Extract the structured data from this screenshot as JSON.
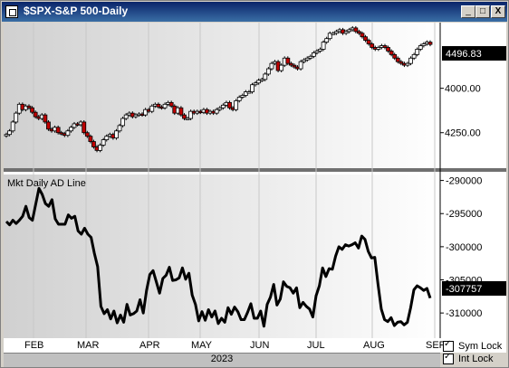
{
  "window": {
    "title": "$SPX-S&P 500-Daily",
    "buttons": {
      "minimize": "_",
      "maximize": "□",
      "close": "X"
    }
  },
  "price_panel": {
    "current_value": "4496.83",
    "y_ticks": [
      "4250.00",
      "4000.00"
    ]
  },
  "breadth_panel": {
    "label": "Mkt Daily AD Line",
    "current_value": "-307757",
    "y_ticks": [
      "-290000",
      "-295000",
      "-300000",
      "-305000",
      "-310000"
    ]
  },
  "x_axis": {
    "months": [
      "FEB",
      "MAR",
      "APR",
      "MAY",
      "JUN",
      "JUL",
      "AUG",
      "SEP"
    ],
    "year": "2023"
  },
  "locks": [
    {
      "label": "Sym Lock",
      "checked": true
    },
    {
      "label": "Int Lock",
      "checked": true
    }
  ],
  "chart_data": [
    {
      "type": "candlestick",
      "title": "$SPX-S&P 500-Daily",
      "ylim": [
        3800,
        4620
      ],
      "y_ticks": [
        4000,
        4250
      ],
      "last_value": 4496.83,
      "close_series": [
        3990,
        4010,
        4060,
        4110,
        4160,
        4130,
        4150,
        4140,
        4115,
        4090,
        4080,
        4100,
        4060,
        4020,
        4010,
        4030,
        4000,
        3995,
        3985,
        4010,
        4030,
        4050,
        4045,
        4060,
        4000,
        3980,
        3950,
        3920,
        3900,
        3930,
        3960,
        3980,
        3990,
        3970,
        4010,
        4040,
        4080,
        4100,
        4110,
        4090,
        4100,
        4105,
        4100,
        4130,
        4120,
        4150,
        4160,
        4145,
        4140,
        4160,
        4170,
        4150,
        4110,
        4140,
        4100,
        4080,
        4080,
        4120,
        4110,
        4120,
        4115,
        4130,
        4110,
        4120,
        4110,
        4130,
        4140,
        4155,
        4170,
        4140,
        4130,
        4180,
        4200,
        4210,
        4230,
        4230,
        4270,
        4280,
        4295,
        4300,
        4330,
        4360,
        4390,
        4400,
        4350,
        4380,
        4420,
        4390,
        4380,
        4370,
        4360,
        4400,
        4410,
        4420,
        4430,
        4450,
        4460,
        4470,
        4510,
        4530,
        4560,
        4560,
        4570,
        4580,
        4560,
        4570,
        4580,
        4590,
        4570,
        4560,
        4540,
        4520,
        4500,
        4480,
        4470,
        4480,
        4490,
        4480,
        4460,
        4440,
        4420,
        4400,
        4390,
        4380,
        4390,
        4420,
        4440,
        4470,
        4490,
        4500,
        4510,
        4497
      ]
    },
    {
      "type": "line",
      "title": "Mkt Daily AD Line",
      "ylim": [
        -313800,
        -289100
      ],
      "y_ticks": [
        -290000,
        -295000,
        -300000,
        -305000,
        -310000
      ],
      "last_value": -307757,
      "series": [
        {
          "values": [
            -296200,
            -296700,
            -296000,
            -296500,
            -296000,
            -295400,
            -293900,
            -295600,
            -296000,
            -293600,
            -291200,
            -292100,
            -293500,
            -293900,
            -292900,
            -295800,
            -296600,
            -296600,
            -296600,
            -295200,
            -295700,
            -295400,
            -297600,
            -298100,
            -297200,
            -298100,
            -298600,
            -301000,
            -303000,
            -309000,
            -310100,
            -309500,
            -310900,
            -309700,
            -311500,
            -310300,
            -311400,
            -308700,
            -310300,
            -310100,
            -309700,
            -308000,
            -310000,
            -306600,
            -304200,
            -303600,
            -305300,
            -307000,
            -304800,
            -304300,
            -303100,
            -305100,
            -305000,
            -304700,
            -303200,
            -304900,
            -304000,
            -307300,
            -308700,
            -311200,
            -309800,
            -311100,
            -309500,
            -310600,
            -309700,
            -311600,
            -310800,
            -311400,
            -309200,
            -310200,
            -309100,
            -309800,
            -311000,
            -311000,
            -309900,
            -308600,
            -310800,
            -310800,
            -309700,
            -312000,
            -308700,
            -307600,
            -305700,
            -308800,
            -307900,
            -305300,
            -306000,
            -306200,
            -307000,
            -306200,
            -309200,
            -308400,
            -309000,
            -309400,
            -310600,
            -307400,
            -305900,
            -303200,
            -304500,
            -303300,
            -303400,
            -301400,
            -300000,
            -300400,
            -299700,
            -299900,
            -299700,
            -299400,
            -300200,
            -298400,
            -298900,
            -300700,
            -301700,
            -301600,
            -305700,
            -309400,
            -311000,
            -311300,
            -310700,
            -311900,
            -311400,
            -311300,
            -311800,
            -311400,
            -309200,
            -306500,
            -305900,
            -306200,
            -306600,
            -306300,
            -307757
          ]
        }
      ]
    }
  ]
}
